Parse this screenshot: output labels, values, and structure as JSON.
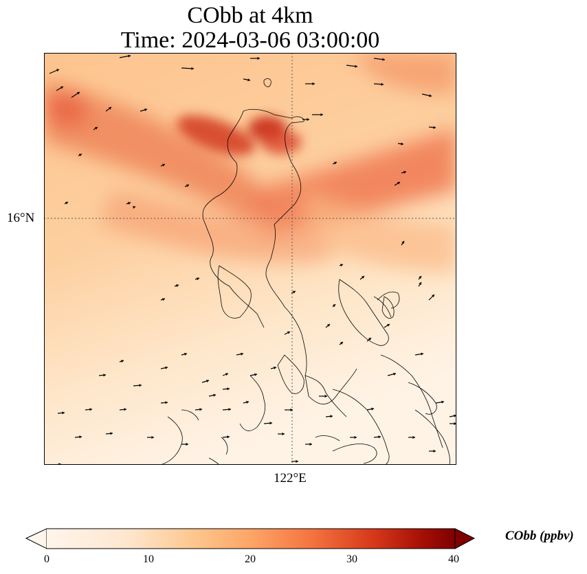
{
  "map": {
    "title_line1": "CObb at 4km",
    "title_line2": "Time: 2024-03-06 03:00:00",
    "lat_label": "16°N",
    "lon_label": "122°E",
    "colormap": [
      "#fff5eb",
      "#fdd9b0",
      "#fdb97d",
      "#f57c4f",
      "#d94326",
      "#a51c0b",
      "#7f0000"
    ],
    "ocean_line_color": "#000000"
  },
  "colorbar": {
    "label": "CObb (ppbv)",
    "ticks": [
      "0",
      "10",
      "20",
      "30",
      "40"
    ],
    "range": [
      0,
      40
    ],
    "extend": "both"
  }
}
